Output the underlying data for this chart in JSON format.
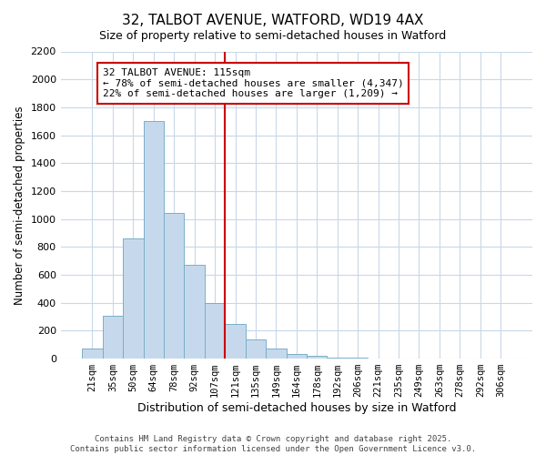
{
  "title": "32, TALBOT AVENUE, WATFORD, WD19 4AX",
  "subtitle": "Size of property relative to semi-detached houses in Watford",
  "xlabel": "Distribution of semi-detached houses by size in Watford",
  "ylabel": "Number of semi-detached properties",
  "bin_labels": [
    "21sqm",
    "35sqm",
    "50sqm",
    "64sqm",
    "78sqm",
    "92sqm",
    "107sqm",
    "121sqm",
    "135sqm",
    "149sqm",
    "164sqm",
    "178sqm",
    "192sqm",
    "206sqm",
    "221sqm",
    "235sqm",
    "249sqm",
    "263sqm",
    "278sqm",
    "292sqm",
    "306sqm"
  ],
  "bar_values": [
    70,
    310,
    860,
    1700,
    1040,
    670,
    400,
    245,
    140,
    75,
    35,
    20,
    10,
    5,
    2,
    1,
    0,
    0,
    0,
    0,
    0
  ],
  "bar_color": "#c6d9ec",
  "bar_edge_color": "#7aaec8",
  "vline_position": 6.5,
  "vline_color": "#cc0000",
  "annotation_title": "32 TALBOT AVENUE: 115sqm",
  "annotation_line2": "← 78% of semi-detached houses are smaller (4,347)",
  "annotation_line3": "22% of semi-detached houses are larger (1,209) →",
  "annotation_box_color": "#ffffff",
  "annotation_box_edge": "#cc0000",
  "ylim": [
    0,
    2200
  ],
  "yticks": [
    0,
    200,
    400,
    600,
    800,
    1000,
    1200,
    1400,
    1600,
    1800,
    2000,
    2200
  ],
  "footer_text": "Contains HM Land Registry data © Crown copyright and database right 2025.\nContains public sector information licensed under the Open Government Licence v3.0.",
  "background_color": "#ffffff",
  "grid_color": "#c8d8e8"
}
